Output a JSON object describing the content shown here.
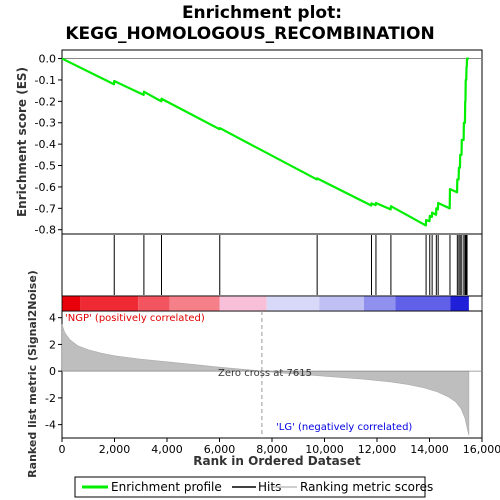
{
  "chart_data": {
    "type": "line",
    "title_line1": "Enrichment plot:",
    "title_line2": "KEGG_HOMOLOGOUS_RECOMBINATION",
    "ylabel_top": "Enrichment score (ES)",
    "ylabel_bottom": "Ranked list metric (Signal2Noise)",
    "xlabel": "Rank in Ordered Dataset",
    "xlim": [
      0,
      16000
    ],
    "x_ticks": [
      0,
      2000,
      4000,
      6000,
      8000,
      10000,
      12000,
      14000,
      16000
    ],
    "x_tick_labels": [
      "0",
      "2,000",
      "4,000",
      "6,000",
      "8,000",
      "10,000",
      "12,000",
      "14,000",
      "16,000"
    ],
    "es_ylim": [
      -0.82,
      0.04
    ],
    "es_ticks": [
      0.0,
      -0.1,
      -0.2,
      -0.3,
      -0.4,
      -0.5,
      -0.6,
      -0.7,
      -0.8
    ],
    "es_tick_labels": [
      "0.0",
      "-0.1",
      "-0.2",
      "-0.3",
      "-0.4",
      "-0.5",
      "-0.6",
      "-0.7",
      "-0.8"
    ],
    "metric_ylim": [
      -5,
      4.5
    ],
    "metric_ticks": [
      4,
      2,
      0,
      -2,
      -4
    ],
    "metric_tick_labels": [
      "4",
      "2",
      "0",
      "-2",
      "-4"
    ],
    "n_genes": 15500,
    "zero_cross_rank": 7615,
    "zero_cross_label": "Zero cross at 7615",
    "pos_label": "'NGP' (positively correlated)",
    "neg_label": "'LG' (negatively correlated)",
    "hits": [
      1990,
      3120,
      3790,
      6010,
      9720,
      11790,
      11960,
      12530,
      13870,
      14010,
      14100,
      14260,
      14330,
      14780,
      15060,
      15120,
      15170,
      15230,
      15310,
      15360,
      15380,
      15410,
      15430
    ],
    "enrichment_profile": {
      "x": [
        0,
        1980,
        1990,
        3110,
        3120,
        3780,
        3790,
        6000,
        6010,
        9710,
        9720,
        11780,
        11790,
        11950,
        11960,
        12520,
        12530,
        13860,
        13870,
        14000,
        14010,
        14090,
        14100,
        14250,
        14260,
        14320,
        14330,
        14770,
        14780,
        15050,
        15060,
        15110,
        15120,
        15160,
        15170,
        15220,
        15230,
        15300,
        15310,
        15350,
        15360,
        15370,
        15380,
        15400,
        15410,
        15420,
        15430,
        15500
      ],
      "y": [
        0.0,
        -0.12,
        -0.105,
        -0.17,
        -0.155,
        -0.2,
        -0.188,
        -0.33,
        -0.325,
        -0.565,
        -0.56,
        -0.687,
        -0.677,
        -0.685,
        -0.675,
        -0.705,
        -0.69,
        -0.78,
        -0.755,
        -0.76,
        -0.735,
        -0.74,
        -0.72,
        -0.73,
        -0.7,
        -0.705,
        -0.675,
        -0.7,
        -0.61,
        -0.625,
        -0.565,
        -0.565,
        -0.51,
        -0.51,
        -0.45,
        -0.45,
        -0.38,
        -0.38,
        -0.3,
        -0.3,
        -0.2,
        -0.2,
        -0.1,
        -0.1,
        -0.04,
        -0.04,
        0.0,
        0.0
      ]
    },
    "ranked_metric": {
      "x": [
        0,
        100,
        300,
        600,
        1000,
        1500,
        2000,
        3000,
        4000,
        5000,
        6000,
        7000,
        7615,
        8500,
        9500,
        10500,
        11500,
        12500,
        13200,
        13800,
        14300,
        14700,
        15000,
        15200,
        15350,
        15450,
        15500
      ],
      "y": [
        3.5,
        2.9,
        2.35,
        1.9,
        1.6,
        1.35,
        1.15,
        0.9,
        0.7,
        0.5,
        0.3,
        0.12,
        0.0,
        -0.15,
        -0.3,
        -0.45,
        -0.6,
        -0.8,
        -1.0,
        -1.25,
        -1.55,
        -1.9,
        -2.3,
        -2.8,
        -3.5,
        -4.4,
        -4.8
      ]
    },
    "gradient_colors": [
      "#e8000a",
      "#ef2a35",
      "#f25560",
      "#f5808a",
      "#f8c0d8",
      "#d8d8f8",
      "#c0c0f5",
      "#9090ef",
      "#6060e8",
      "#2020d8"
    ],
    "gradient_breaks": [
      0,
      700,
      2900,
      4100,
      6000,
      7800,
      9800,
      11500,
      12700,
      14800,
      15500
    ],
    "colors": {
      "profile": "#00ee00",
      "hits": "#000000",
      "metric_fill": "#bebebe",
      "pos_label": "#e00000",
      "neg_label": "#0000e0"
    },
    "legend": {
      "profile": "Enrichment profile",
      "hits": "Hits",
      "metric": "Ranking metric scores"
    }
  }
}
